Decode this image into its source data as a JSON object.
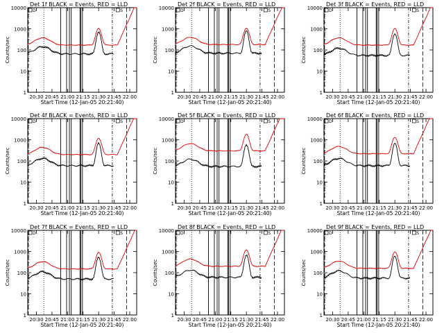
{
  "common": {
    "type": "line",
    "xlabel": "Start Time (12-Jan-05 20:21:40)",
    "ylabel": "Counts/sec",
    "x_ticks": [
      "20:30",
      "20:45",
      "21:00",
      "21:15",
      "21:30",
      "21:45",
      "22:00"
    ],
    "y_ticks": [
      "1",
      "10",
      "100",
      "1000",
      "10000"
    ],
    "y_scale": "log",
    "ylim": [
      1,
      10000
    ],
    "colors": {
      "events": "#000000",
      "lld": "#e00000"
    }
  },
  "chart_data": [
    {
      "title": "Det 1f  BLACK = Events, RED = LLD",
      "legend_marks": [
        "D",
        "S"
      ],
      "events_level": 65,
      "lld_level": 170
    },
    {
      "title": "Det 2f  BLACK = Events, RED = LLD",
      "legend_marks": [
        "D",
        "S"
      ],
      "events_level": 70,
      "lld_level": 180
    },
    {
      "title": "Det 3f  BLACK = Events, RED = LLD",
      "legend_marks": [
        "D",
        "S"
      ],
      "events_level": 55,
      "lld_level": 170
    },
    {
      "title": "Det 4f  BLACK = Events, RED = LLD",
      "legend_marks": [
        "D",
        "S"
      ],
      "events_level": 60,
      "lld_level": 200
    },
    {
      "title": "Det 5f  BLACK = Events, RED = LLD",
      "legend_marks": [
        "D",
        "S"
      ],
      "events_level": 55,
      "lld_level": 300
    },
    {
      "title": "Det 6f  BLACK = Events, RED = LLD",
      "legend_marks": [
        "D",
        "S"
      ],
      "events_level": 60,
      "lld_level": 220
    },
    {
      "title": "Det 7f  BLACK = Events, RED = LLD",
      "legend_marks": [
        "D",
        "S"
      ],
      "events_level": 50,
      "lld_level": 150
    },
    {
      "title": "Det 8f  BLACK = Events, RED = LLD",
      "legend_marks": [
        "D",
        "S"
      ],
      "events_level": 60,
      "lld_level": 200
    },
    {
      "title": "Det 9f  BLACK = Events, RED = LLD",
      "legend_marks": [
        "D",
        "S"
      ],
      "events_level": 55,
      "lld_level": 160
    }
  ]
}
